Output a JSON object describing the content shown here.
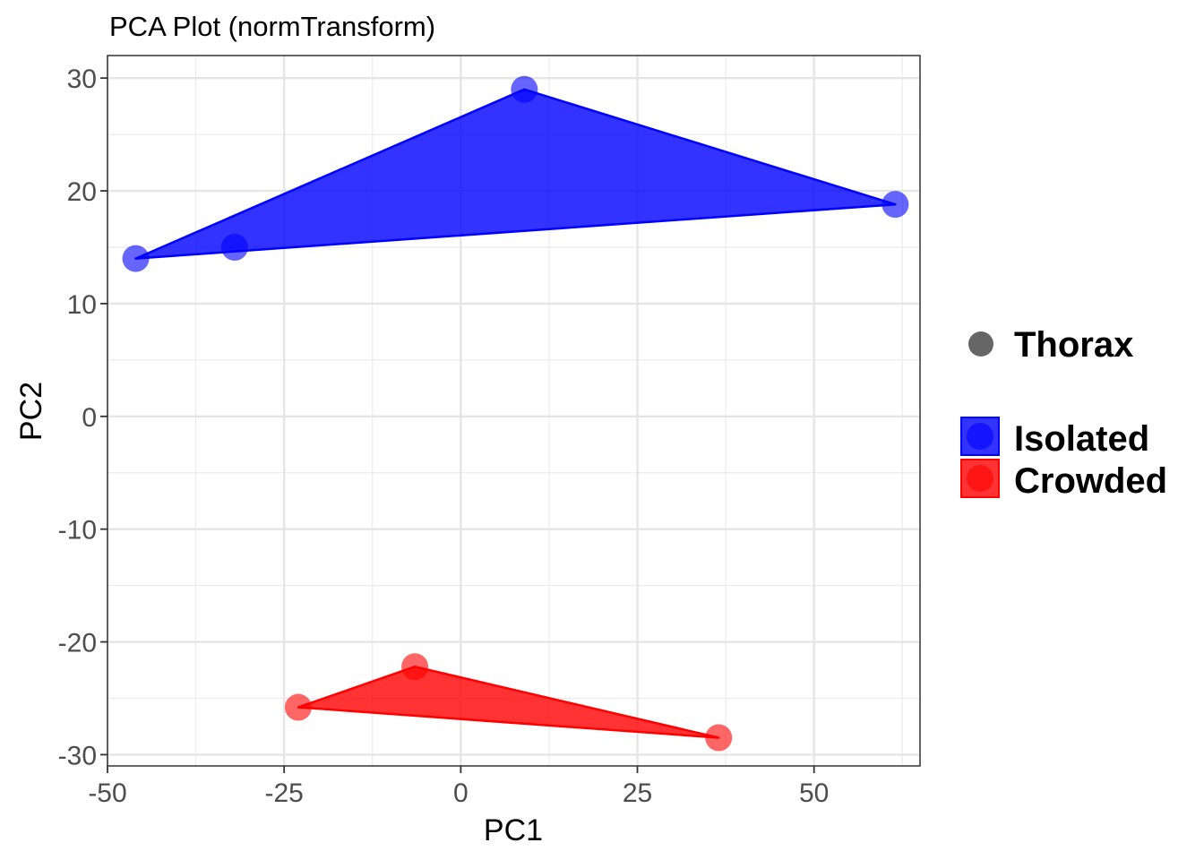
{
  "chart_data": {
    "type": "scatter",
    "title": "PCA Plot (normTransform)",
    "xlabel": "PC1",
    "ylabel": "PC2",
    "xlim": [
      -50,
      65
    ],
    "ylim": [
      -31,
      32
    ],
    "x_ticks": [
      -50,
      -25,
      0,
      25,
      50
    ],
    "y_ticks": [
      30,
      20,
      10,
      0,
      -10,
      -20,
      -30
    ],
    "x_tick_labels": [
      "-50",
      "-25",
      "0",
      "25",
      "50"
    ],
    "y_tick_labels": [
      "30",
      "20",
      "10",
      "0",
      "-10",
      "-20",
      "-30"
    ],
    "grid": true,
    "hull_fill": true,
    "legend": {
      "position": "right",
      "shape_title": "Thorax",
      "shape_color": "#666666",
      "entries": [
        "Isolated",
        "Crowded"
      ]
    },
    "series": [
      {
        "name": "Isolated",
        "color": "#0000ff",
        "points": [
          {
            "x": -46,
            "y": 14
          },
          {
            "x": -32,
            "y": 15
          },
          {
            "x": 9,
            "y": 29
          },
          {
            "x": 61.5,
            "y": 18.8
          }
        ]
      },
      {
        "name": "Crowded",
        "color": "#ff0000",
        "points": [
          {
            "x": -23,
            "y": -25.8
          },
          {
            "x": -6.5,
            "y": -22.2
          },
          {
            "x": 36.5,
            "y": -28.5
          }
        ]
      }
    ]
  }
}
